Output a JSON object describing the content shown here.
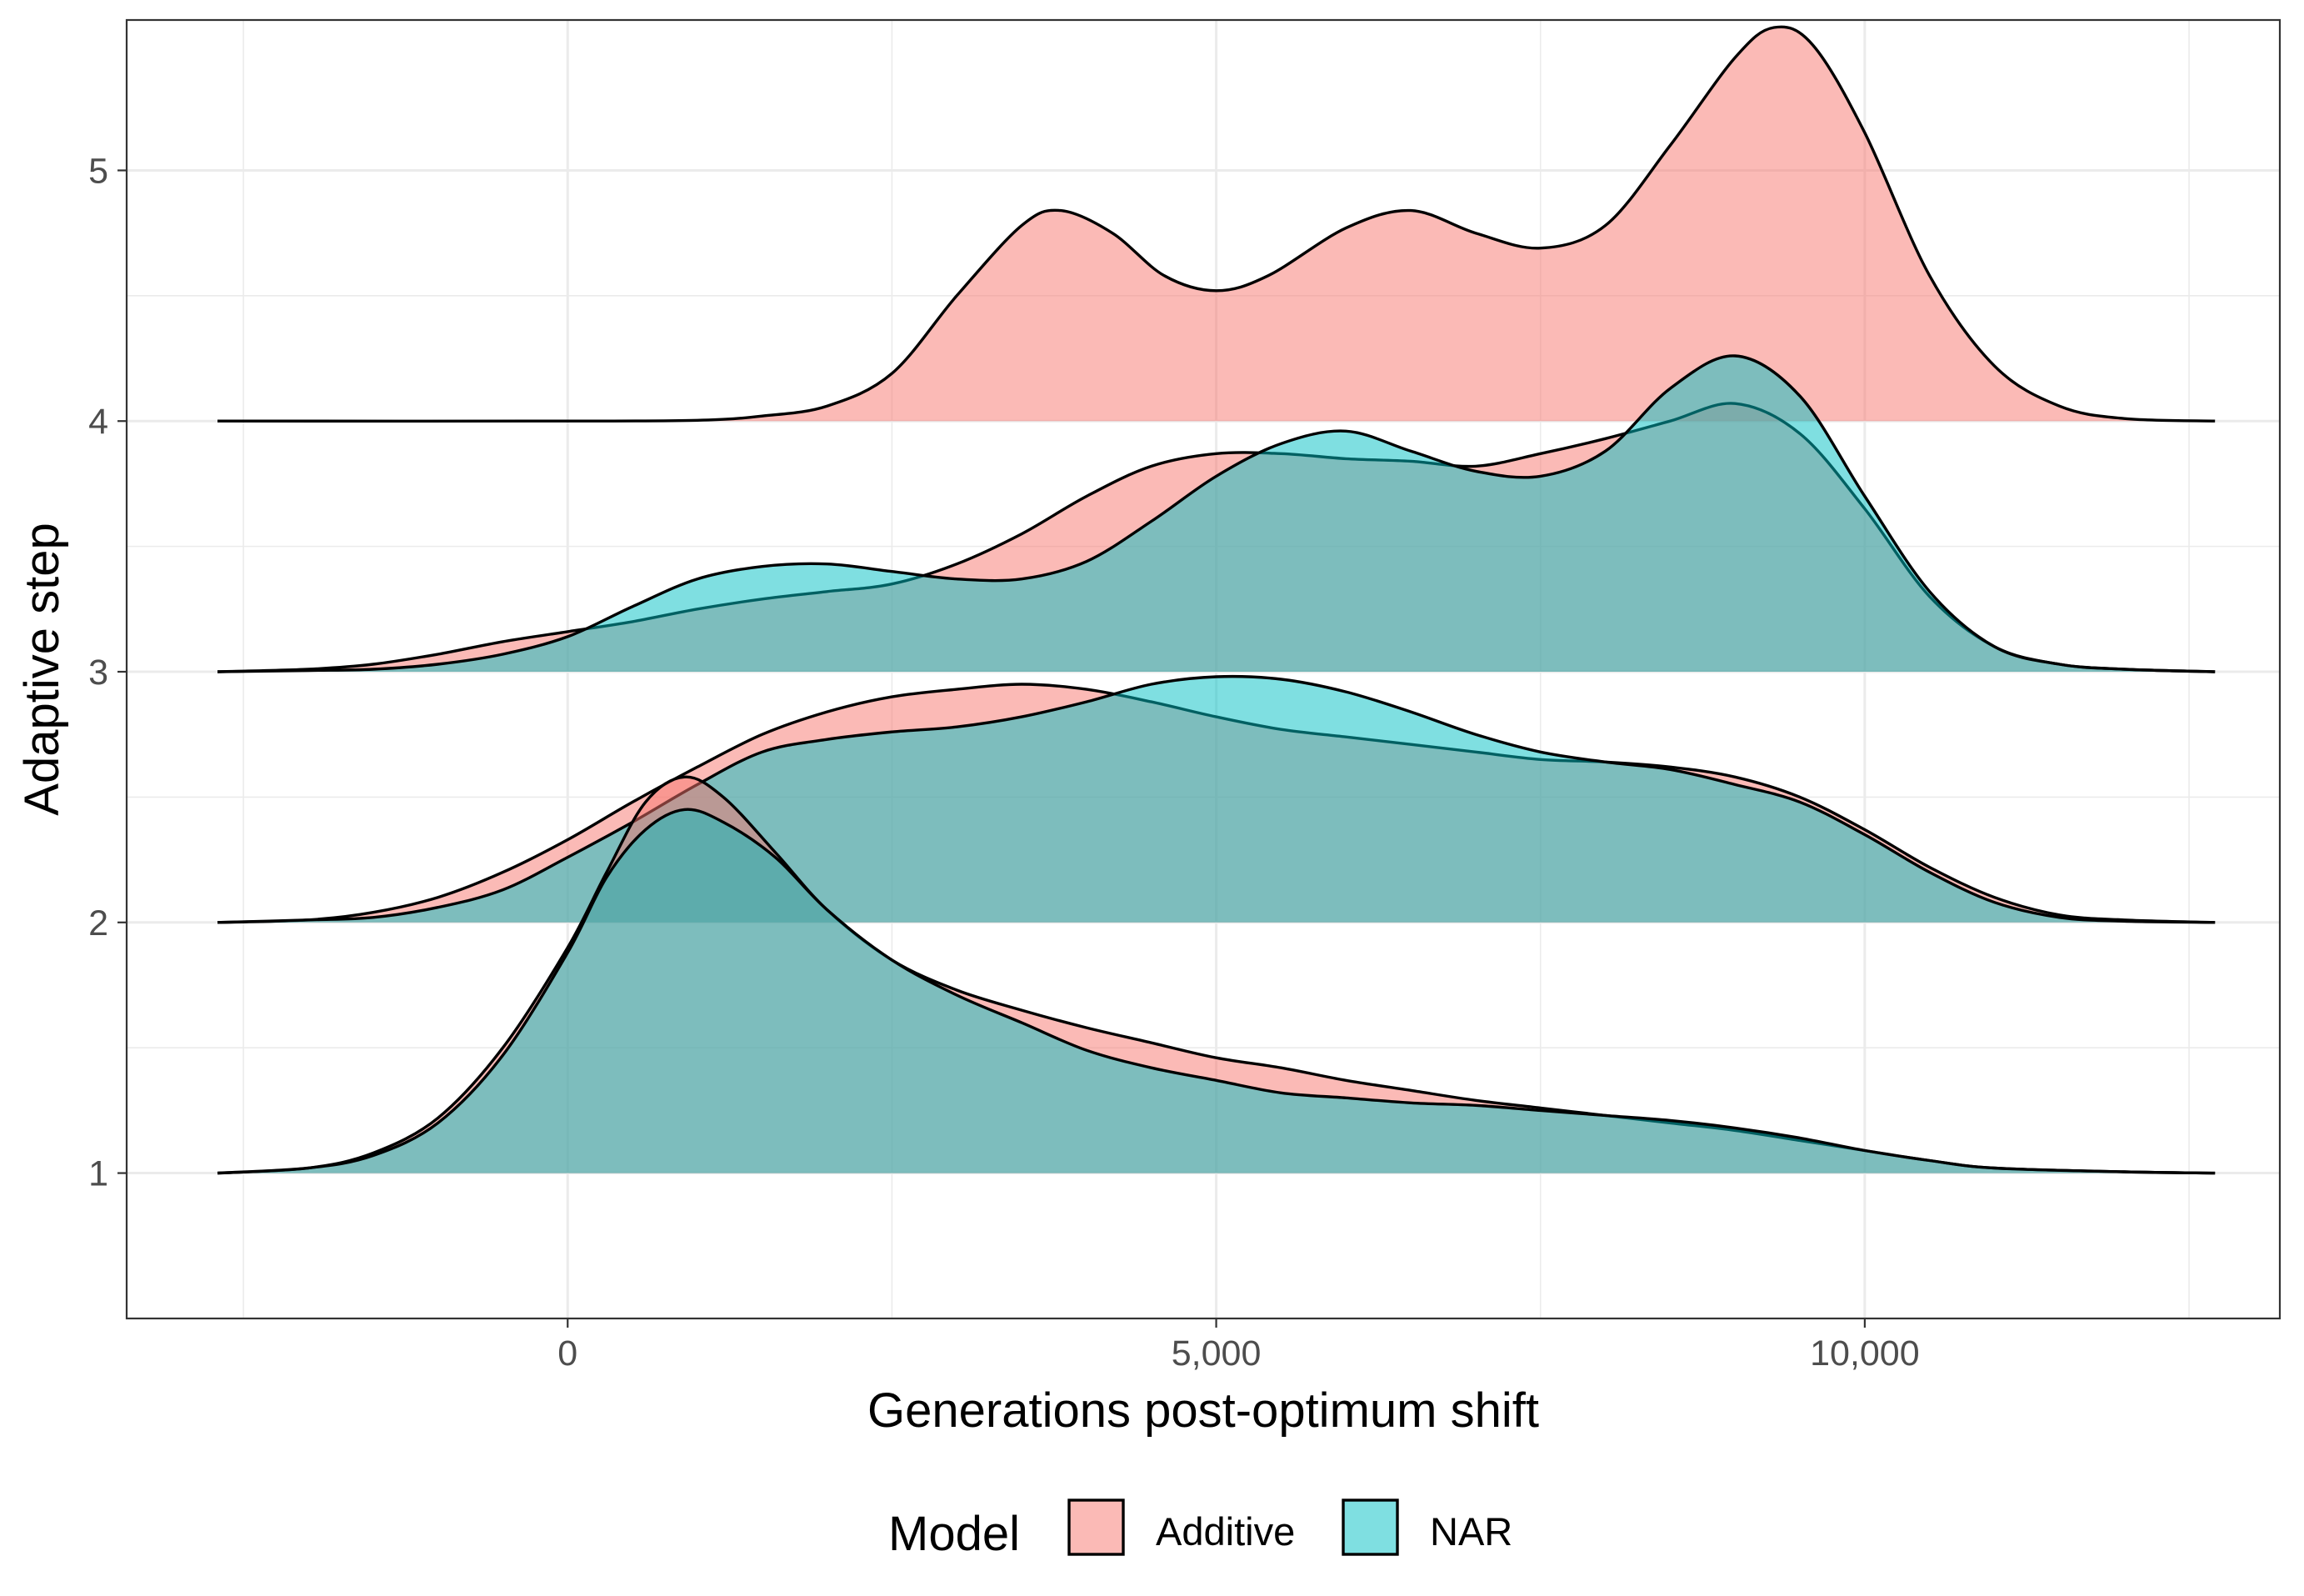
{
  "chart_data": {
    "type": "ridgeline",
    "xlabel": "Generations post-optimum shift",
    "ylabel": "Adaptive step",
    "xlim": [
      -3400,
      13200
    ],
    "ylim": [
      0.42,
      5.6
    ],
    "x_ticks": [
      {
        "value": 0,
        "label": "0"
      },
      {
        "value": 5000,
        "label": "5,000"
      },
      {
        "value": 10000,
        "label": "10,000"
      }
    ],
    "x_minor_ticks": [
      -2500,
      2500,
      7500,
      12500
    ],
    "y_ticks": [
      {
        "value": 1,
        "label": "1"
      },
      {
        "value": 2,
        "label": "2"
      },
      {
        "value": 3,
        "label": "3"
      },
      {
        "value": 4,
        "label": "4"
      },
      {
        "value": 5,
        "label": "5"
      }
    ],
    "grid": true,
    "legend": {
      "title": "Model",
      "position": "bottom",
      "items": [
        {
          "label": "Additive",
          "color": "#F8766D"
        },
        {
          "label": "NAR",
          "color": "#00BFC4"
        }
      ]
    },
    "fill_opacity": 0.5,
    "series": [
      {
        "name": "Additive",
        "step": 1,
        "points": [
          [
            -2700,
            1.0
          ],
          [
            -2000,
            1.02
          ],
          [
            -1500,
            1.08
          ],
          [
            -1000,
            1.22
          ],
          [
            -500,
            1.5
          ],
          [
            0,
            1.9
          ],
          [
            300,
            2.2
          ],
          [
            600,
            2.48
          ],
          [
            900,
            2.58
          ],
          [
            1200,
            2.5
          ],
          [
            1600,
            2.28
          ],
          [
            2000,
            2.05
          ],
          [
            2500,
            1.85
          ],
          [
            3000,
            1.73
          ],
          [
            3500,
            1.65
          ],
          [
            4000,
            1.58
          ],
          [
            4500,
            1.52
          ],
          [
            5000,
            1.46
          ],
          [
            5500,
            1.42
          ],
          [
            6000,
            1.37
          ],
          [
            6500,
            1.33
          ],
          [
            7000,
            1.29
          ],
          [
            7500,
            1.26
          ],
          [
            8000,
            1.23
          ],
          [
            8500,
            1.2
          ],
          [
            9000,
            1.17
          ],
          [
            9500,
            1.13
          ],
          [
            10000,
            1.09
          ],
          [
            10500,
            1.05
          ],
          [
            11000,
            1.02
          ],
          [
            12000,
            1.005
          ],
          [
            12700,
            1.0
          ]
        ]
      },
      {
        "name": "NAR",
        "step": 1,
        "points": [
          [
            -2700,
            1.0
          ],
          [
            -2000,
            1.02
          ],
          [
            -1500,
            1.07
          ],
          [
            -1000,
            1.2
          ],
          [
            -500,
            1.47
          ],
          [
            0,
            1.88
          ],
          [
            300,
            2.18
          ],
          [
            600,
            2.37
          ],
          [
            900,
            2.45
          ],
          [
            1200,
            2.4
          ],
          [
            1600,
            2.26
          ],
          [
            2000,
            2.05
          ],
          [
            2500,
            1.85
          ],
          [
            3000,
            1.71
          ],
          [
            3500,
            1.6
          ],
          [
            4000,
            1.49
          ],
          [
            4500,
            1.42
          ],
          [
            5000,
            1.37
          ],
          [
            5500,
            1.32
          ],
          [
            6000,
            1.3
          ],
          [
            6500,
            1.28
          ],
          [
            7000,
            1.27
          ],
          [
            7500,
            1.25
          ],
          [
            8000,
            1.23
          ],
          [
            8500,
            1.21
          ],
          [
            9000,
            1.18
          ],
          [
            9500,
            1.14
          ],
          [
            10000,
            1.09
          ],
          [
            10500,
            1.05
          ],
          [
            11000,
            1.02
          ],
          [
            12000,
            1.005
          ],
          [
            12700,
            1.0
          ]
        ]
      },
      {
        "name": "Additive",
        "step": 2,
        "points": [
          [
            -2700,
            2.0
          ],
          [
            -2000,
            2.01
          ],
          [
            -1500,
            2.04
          ],
          [
            -1000,
            2.1
          ],
          [
            -500,
            2.2
          ],
          [
            0,
            2.33
          ],
          [
            500,
            2.48
          ],
          [
            1000,
            2.62
          ],
          [
            1500,
            2.75
          ],
          [
            2000,
            2.84
          ],
          [
            2500,
            2.9
          ],
          [
            3000,
            2.93
          ],
          [
            3500,
            2.95
          ],
          [
            4000,
            2.93
          ],
          [
            4500,
            2.88
          ],
          [
            5000,
            2.82
          ],
          [
            5500,
            2.77
          ],
          [
            6000,
            2.74
          ],
          [
            6500,
            2.71
          ],
          [
            7000,
            2.68
          ],
          [
            7500,
            2.65
          ],
          [
            8000,
            2.64
          ],
          [
            8500,
            2.62
          ],
          [
            9000,
            2.58
          ],
          [
            9500,
            2.5
          ],
          [
            10000,
            2.37
          ],
          [
            10500,
            2.22
          ],
          [
            11000,
            2.1
          ],
          [
            11500,
            2.03
          ],
          [
            12000,
            2.01
          ],
          [
            12700,
            2.0
          ]
        ]
      },
      {
        "name": "NAR",
        "step": 2,
        "points": [
          [
            -2700,
            2.0
          ],
          [
            -2000,
            2.01
          ],
          [
            -1500,
            2.02
          ],
          [
            -1000,
            2.06
          ],
          [
            -500,
            2.13
          ],
          [
            0,
            2.26
          ],
          [
            500,
            2.4
          ],
          [
            1000,
            2.55
          ],
          [
            1500,
            2.68
          ],
          [
            2000,
            2.73
          ],
          [
            2500,
            2.76
          ],
          [
            3000,
            2.78
          ],
          [
            3500,
            2.82
          ],
          [
            4000,
            2.88
          ],
          [
            4500,
            2.95
          ],
          [
            5000,
            2.98
          ],
          [
            5500,
            2.97
          ],
          [
            6000,
            2.92
          ],
          [
            6500,
            2.84
          ],
          [
            7000,
            2.75
          ],
          [
            7500,
            2.68
          ],
          [
            8000,
            2.64
          ],
          [
            8500,
            2.61
          ],
          [
            9000,
            2.55
          ],
          [
            9500,
            2.48
          ],
          [
            10000,
            2.35
          ],
          [
            10500,
            2.2
          ],
          [
            11000,
            2.08
          ],
          [
            11500,
            2.02
          ],
          [
            12000,
            2.005
          ],
          [
            12700,
            2.0
          ]
        ]
      },
      {
        "name": "Additive",
        "step": 3,
        "points": [
          [
            -2700,
            3.0
          ],
          [
            -2000,
            3.01
          ],
          [
            -1500,
            3.03
          ],
          [
            -1000,
            3.07
          ],
          [
            -500,
            3.12
          ],
          [
            0,
            3.16
          ],
          [
            500,
            3.2
          ],
          [
            1000,
            3.25
          ],
          [
            1500,
            3.29
          ],
          [
            2000,
            3.32
          ],
          [
            2500,
            3.35
          ],
          [
            3000,
            3.43
          ],
          [
            3500,
            3.55
          ],
          [
            4000,
            3.7
          ],
          [
            4500,
            3.82
          ],
          [
            5000,
            3.87
          ],
          [
            5500,
            3.87
          ],
          [
            6000,
            3.85
          ],
          [
            6500,
            3.84
          ],
          [
            7000,
            3.82
          ],
          [
            7500,
            3.87
          ],
          [
            8000,
            3.93
          ],
          [
            8500,
            4.0
          ],
          [
            9000,
            4.07
          ],
          [
            9500,
            3.95
          ],
          [
            10000,
            3.65
          ],
          [
            10500,
            3.3
          ],
          [
            11000,
            3.1
          ],
          [
            11500,
            3.03
          ],
          [
            12000,
            3.01
          ],
          [
            12700,
            3.0
          ]
        ]
      },
      {
        "name": "NAR",
        "step": 3,
        "points": [
          [
            -2700,
            3.0
          ],
          [
            -2000,
            3.005
          ],
          [
            -1500,
            3.01
          ],
          [
            -1000,
            3.03
          ],
          [
            -500,
            3.07
          ],
          [
            0,
            3.14
          ],
          [
            500,
            3.26
          ],
          [
            1000,
            3.37
          ],
          [
            1500,
            3.42
          ],
          [
            2000,
            3.43
          ],
          [
            2500,
            3.4
          ],
          [
            3000,
            3.37
          ],
          [
            3500,
            3.37
          ],
          [
            4000,
            3.44
          ],
          [
            4500,
            3.6
          ],
          [
            5000,
            3.78
          ],
          [
            5500,
            3.91
          ],
          [
            6000,
            3.96
          ],
          [
            6500,
            3.88
          ],
          [
            7000,
            3.8
          ],
          [
            7500,
            3.78
          ],
          [
            8000,
            3.88
          ],
          [
            8500,
            4.13
          ],
          [
            9000,
            4.26
          ],
          [
            9500,
            4.1
          ],
          [
            10000,
            3.7
          ],
          [
            10500,
            3.32
          ],
          [
            11000,
            3.1
          ],
          [
            11500,
            3.03
          ],
          [
            12000,
            3.01
          ],
          [
            12700,
            3.0
          ]
        ]
      },
      {
        "name": "Additive",
        "step": 4,
        "points": [
          [
            -2700,
            4.0
          ],
          [
            0,
            4.0
          ],
          [
            1000,
            4.003
          ],
          [
            1500,
            4.02
          ],
          [
            2000,
            4.06
          ],
          [
            2500,
            4.19
          ],
          [
            3000,
            4.5
          ],
          [
            3500,
            4.78
          ],
          [
            3800,
            4.84
          ],
          [
            4200,
            4.75
          ],
          [
            4600,
            4.58
          ],
          [
            5000,
            4.52
          ],
          [
            5400,
            4.58
          ],
          [
            6000,
            4.77
          ],
          [
            6500,
            4.84
          ],
          [
            7000,
            4.75
          ],
          [
            7500,
            4.69
          ],
          [
            8000,
            4.78
          ],
          [
            8500,
            5.1
          ],
          [
            9000,
            5.45
          ],
          [
            9300,
            5.57
          ],
          [
            9600,
            5.5
          ],
          [
            10000,
            5.15
          ],
          [
            10500,
            4.58
          ],
          [
            11000,
            4.22
          ],
          [
            11500,
            4.06
          ],
          [
            12000,
            4.01
          ],
          [
            12700,
            4.0
          ]
        ]
      }
    ]
  }
}
